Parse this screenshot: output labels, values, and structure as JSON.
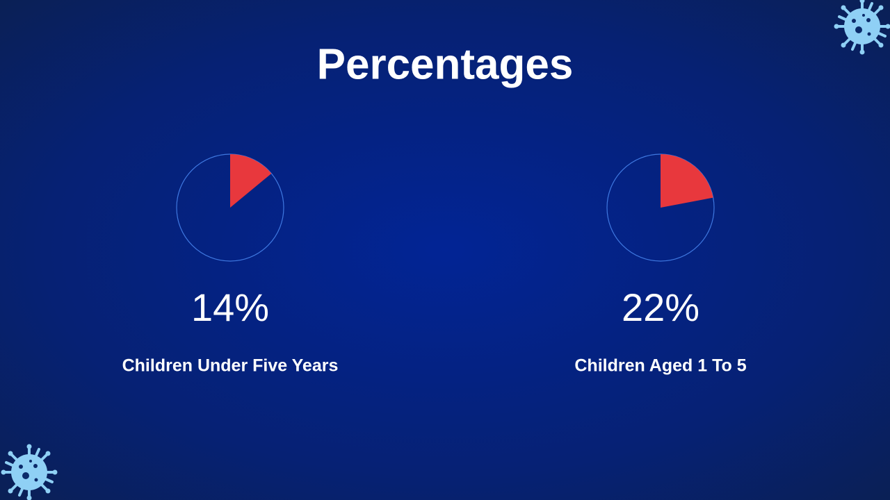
{
  "title": "Percentages",
  "chart_data": [
    {
      "type": "pie",
      "categories": [
        "Children Under Five Years"
      ],
      "values": [
        14
      ],
      "value_labels": [
        "14%"
      ],
      "color": "#e8383d"
    },
    {
      "type": "pie",
      "categories": [
        "Children Aged 1 To 5"
      ],
      "values": [
        22
      ],
      "value_labels": [
        "22%"
      ],
      "color": "#e8383d"
    }
  ]
}
